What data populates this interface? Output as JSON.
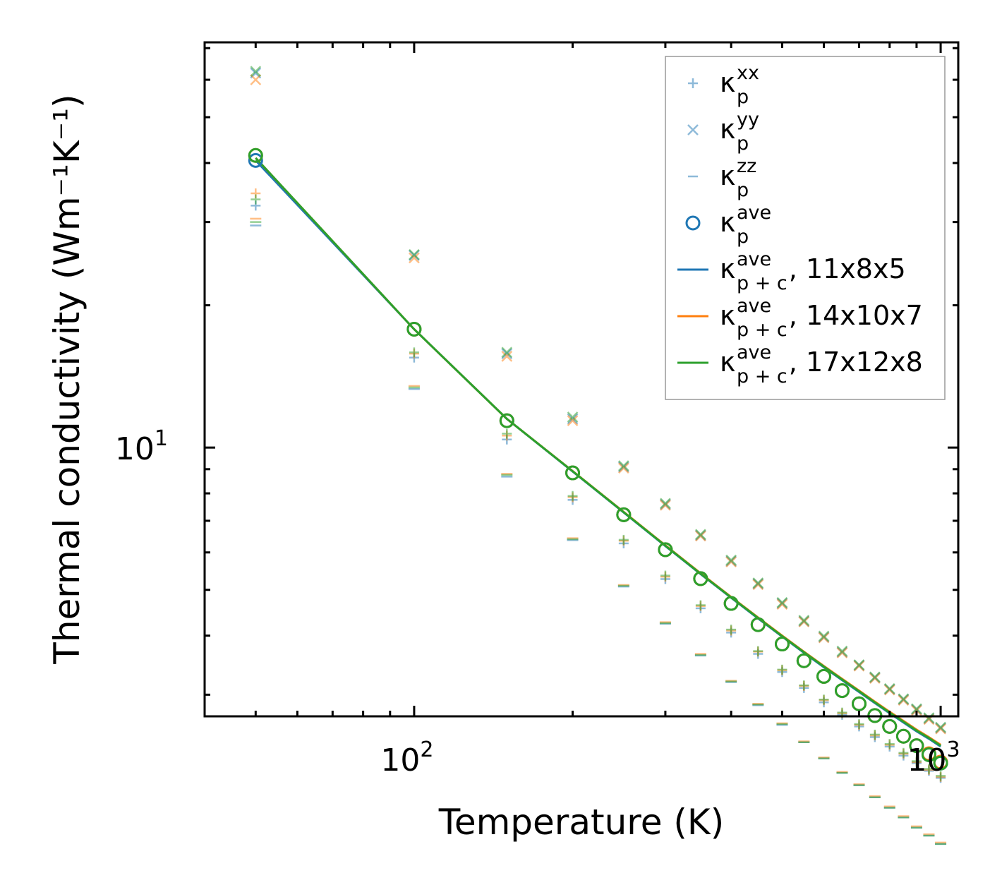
{
  "chart_data": {
    "type": "scatter",
    "xscale": "log",
    "yscale": "log",
    "xlim": [
      40,
      1080
    ],
    "ylim": [
      2.7,
      72
    ],
    "xlabel": "Temperature (K)",
    "ylabel": "Thermal conductivity (Wm⁻¹K⁻¹)",
    "xticks": [
      {
        "base": "10",
        "exp": "2",
        "value": 100
      },
      {
        "base": "10",
        "exp": "3",
        "value": 1000
      }
    ],
    "yticks": [
      {
        "base": "10",
        "exp": "1",
        "value": 10
      }
    ],
    "x": [
      50,
      100,
      150,
      200,
      250,
      300,
      350,
      400,
      450,
      500,
      550,
      600,
      650,
      700,
      750,
      800,
      850,
      900,
      950,
      1000
    ],
    "legend": {
      "location": "upper right",
      "entries": [
        {
          "symbol": "plus",
          "color": "#1f77b4",
          "base": "κ",
          "sub": "p",
          "sup": "xx",
          "rest": ""
        },
        {
          "symbol": "x",
          "color": "#1f77b4",
          "base": "κ",
          "sub": "p",
          "sup": "yy",
          "rest": ""
        },
        {
          "symbol": "dash",
          "color": "#1f77b4",
          "base": "κ",
          "sub": "p",
          "sup": "zz",
          "rest": ""
        },
        {
          "symbol": "circle",
          "color": "#1f77b4",
          "base": "κ",
          "sub": "p",
          "sup": "ave",
          "rest": ""
        },
        {
          "symbol": "line",
          "color": "#1f77b4",
          "base": "κ",
          "sub": "p + c",
          "sup": "ave",
          "rest": ", 11x8x5"
        },
        {
          "symbol": "line",
          "color": "#ff7f0e",
          "base": "κ",
          "sub": "p + c",
          "sup": "ave",
          "rest": ", 14x10x7"
        },
        {
          "symbol": "line",
          "color": "#2ca02c",
          "base": "κ",
          "sub": "p + c",
          "sup": "ave",
          "rest": ", 17x12x8"
        }
      ]
    },
    "series": [
      {
        "name": "11x8x5",
        "color": "#1f77b4",
        "kxx": [
          32.5,
          15.5,
          10.4,
          7.75,
          6.27,
          5.27,
          4.57,
          4.06,
          3.66,
          3.35,
          3.1,
          2.89,
          2.72,
          2.57,
          2.44,
          2.33,
          2.23,
          2.15,
          2.07,
          2.0
        ],
        "kyy": [
          62,
          25.5,
          15.8,
          11.5,
          9.1,
          7.58,
          6.52,
          5.75,
          5.15,
          4.68,
          4.29,
          3.97,
          3.69,
          3.46,
          3.26,
          3.08,
          2.93,
          2.79,
          2.67,
          2.55
        ],
        "kzz": [
          29.5,
          13.3,
          8.68,
          6.37,
          5.08,
          4.24,
          3.63,
          3.19,
          2.85,
          2.59,
          2.38,
          2.2,
          2.05,
          1.93,
          1.82,
          1.73,
          1.65,
          1.57,
          1.51,
          1.45
        ],
        "kave": [
          40.5,
          17.8,
          11.4,
          8.84,
          7.21,
          6.08,
          5.28,
          4.68,
          4.22,
          3.84,
          3.54,
          3.28,
          3.06,
          2.87,
          2.71,
          2.57,
          2.45,
          2.34,
          2.24,
          2.15
        ],
        "kpc": [
          40.5,
          17.8,
          11.5,
          8.9,
          7.29,
          6.19,
          5.4,
          4.81,
          4.35,
          3.98,
          3.68,
          3.43,
          3.22,
          3.04,
          2.88,
          2.74,
          2.62,
          2.51,
          2.42,
          2.33
        ]
      },
      {
        "name": "14x10x7",
        "color": "#ff7f0e",
        "kxx": [
          34.5,
          15.8,
          10.6,
          7.85,
          6.35,
          5.33,
          4.62,
          4.1,
          3.7,
          3.38,
          3.13,
          2.92,
          2.74,
          2.59,
          2.46,
          2.35,
          2.25,
          2.16,
          2.08,
          2.01
        ],
        "kyy": [
          60,
          25.2,
          15.6,
          11.4,
          9.05,
          7.55,
          6.5,
          5.73,
          5.13,
          4.66,
          4.28,
          3.96,
          3.68,
          3.45,
          3.25,
          3.07,
          2.92,
          2.78,
          2.66,
          2.54
        ],
        "kzz": [
          30.5,
          13.5,
          8.8,
          6.43,
          5.12,
          4.27,
          3.66,
          3.21,
          2.87,
          2.61,
          2.39,
          2.21,
          2.06,
          1.94,
          1.83,
          1.74,
          1.66,
          1.58,
          1.52,
          1.46
        ],
        "kave": [
          41.5,
          17.8,
          11.4,
          8.84,
          7.21,
          6.08,
          5.28,
          4.68,
          4.22,
          3.84,
          3.54,
          3.28,
          3.06,
          2.87,
          2.71,
          2.57,
          2.45,
          2.34,
          2.25,
          2.16
        ],
        "kpc": [
          41.0,
          17.8,
          11.5,
          8.92,
          7.31,
          6.21,
          5.42,
          4.83,
          4.37,
          4.0,
          3.7,
          3.45,
          3.24,
          3.06,
          2.9,
          2.76,
          2.64,
          2.53,
          2.44,
          2.35
        ]
      },
      {
        "name": "17x12x8",
        "color": "#2ca02c",
        "kxx": [
          33.5,
          15.9,
          10.7,
          7.9,
          6.38,
          5.36,
          4.64,
          4.12,
          3.71,
          3.39,
          3.14,
          2.93,
          2.75,
          2.6,
          2.47,
          2.36,
          2.26,
          2.17,
          2.09,
          2.02
        ],
        "kyy": [
          62.5,
          25.6,
          15.9,
          11.6,
          9.15,
          7.62,
          6.55,
          5.78,
          5.17,
          4.7,
          4.31,
          3.99,
          3.71,
          3.47,
          3.27,
          3.09,
          2.94,
          2.8,
          2.68,
          2.56
        ],
        "kzz": [
          30.0,
          13.4,
          8.75,
          6.4,
          5.1,
          4.25,
          3.64,
          3.2,
          2.86,
          2.6,
          2.38,
          2.2,
          2.05,
          1.93,
          1.82,
          1.73,
          1.65,
          1.57,
          1.51,
          1.45
        ],
        "kave": [
          41.5,
          17.8,
          11.4,
          8.84,
          7.21,
          6.08,
          5.28,
          4.68,
          4.22,
          3.84,
          3.54,
          3.28,
          3.06,
          2.87,
          2.71,
          2.57,
          2.45,
          2.34,
          2.24,
          2.15
        ],
        "kpc": [
          41.0,
          17.8,
          11.5,
          8.91,
          7.3,
          6.2,
          5.41,
          4.82,
          4.36,
          3.99,
          3.69,
          3.44,
          3.23,
          3.05,
          2.89,
          2.75,
          2.63,
          2.52,
          2.43,
          2.34
        ]
      }
    ]
  }
}
